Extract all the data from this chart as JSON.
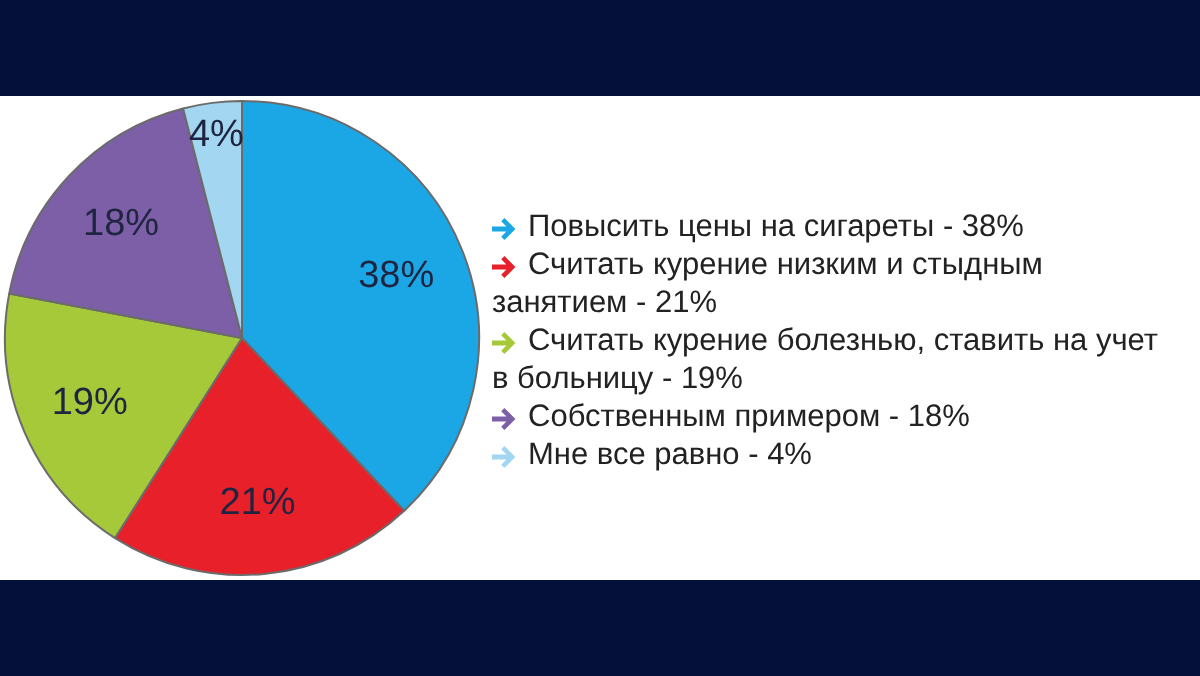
{
  "chart_data": {
    "type": "pie",
    "categories": [
      "Повысить цены на сигареты - 38%",
      "Считать курение низким и стыдным занятием - 21%",
      "Считать курение болезнью, ставить на учет в больницу - 19%",
      "Собственным примером - 18%",
      "Мне все равно - 4%"
    ],
    "values": [
      38,
      21,
      19,
      18,
      4
    ],
    "colors": [
      "#1ba7e6",
      "#e8202a",
      "#a5c938",
      "#7d5fa8",
      "#a3d6f1"
    ],
    "value_labels": [
      "38%",
      "21%",
      "19%",
      "18%",
      "4%"
    ],
    "legend": "right"
  }
}
